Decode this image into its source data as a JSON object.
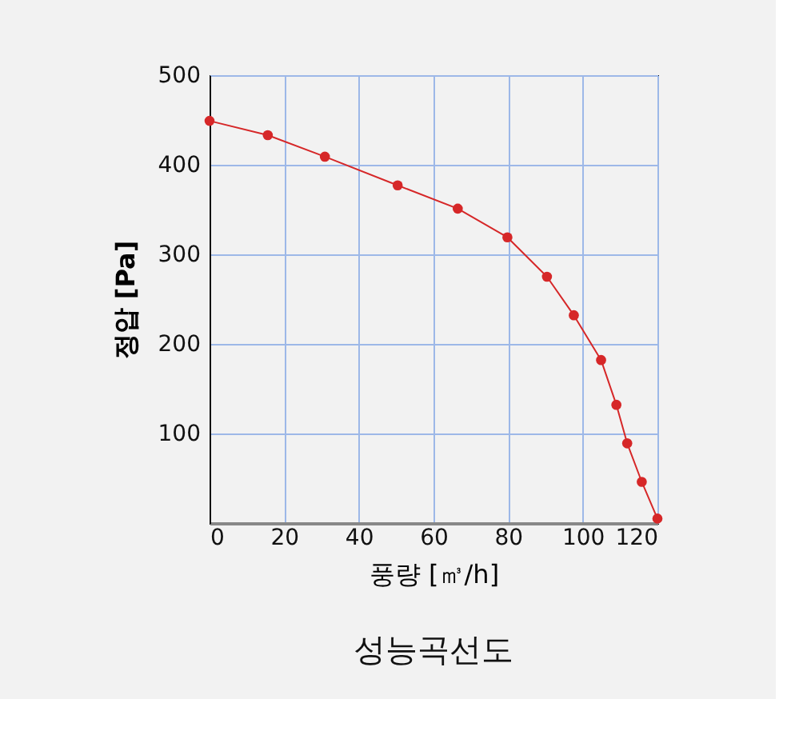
{
  "chart_data": {
    "type": "line",
    "title": "성능곡선도",
    "xlabel": "풍량 [㎥/h]",
    "ylabel": "정압 [Pa]",
    "x": [
      0,
      15.6,
      30.9,
      50.4,
      66.5,
      79.8,
      90.4,
      97.6,
      104.9,
      109,
      111.9,
      115.8,
      120
    ],
    "series": [
      {
        "color": "#d62728",
        "values": [
          449,
          433,
          409,
          377,
          351,
          319,
          275,
          232,
          182,
          132,
          89,
          46,
          5
        ]
      }
    ],
    "xlim": [
      0,
      120
    ],
    "xticks": [
      0,
      20,
      40,
      60,
      80,
      100,
      120
    ],
    "ylim": [
      0,
      500
    ],
    "yticks": [
      100,
      200,
      300,
      400,
      500
    ],
    "grid": true,
    "marker": "circle",
    "line_style": "solid"
  }
}
